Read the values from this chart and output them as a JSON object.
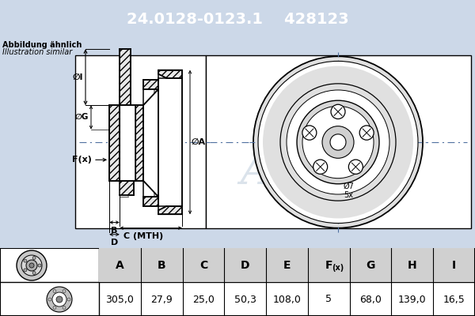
{
  "title_part_number": "24.0128-0123.1",
  "title_ref_number": "428123",
  "title_bg_color": "#3a6eb5",
  "title_text_color": "#ffffff",
  "subtitle_line1": "Abbildung ähnlich",
  "subtitle_line2": "Illustration similar",
  "table_headers": [
    "A",
    "B",
    "C",
    "D",
    "E",
    "F(x)",
    "G",
    "H",
    "I"
  ],
  "table_values": [
    "305,0",
    "27,9",
    "25,0",
    "50,3",
    "108,0",
    "5",
    "68,0",
    "139,0",
    "16,5"
  ],
  "watermark": "Ate",
  "bg_color": "#ccd8e8",
  "diagram_bg": "#ffffff",
  "bolt_label": "Ø7",
  "bolt_count": "5x",
  "n_bolts": 5,
  "disc_face_color": "#e8e8e8",
  "black": "#000000"
}
